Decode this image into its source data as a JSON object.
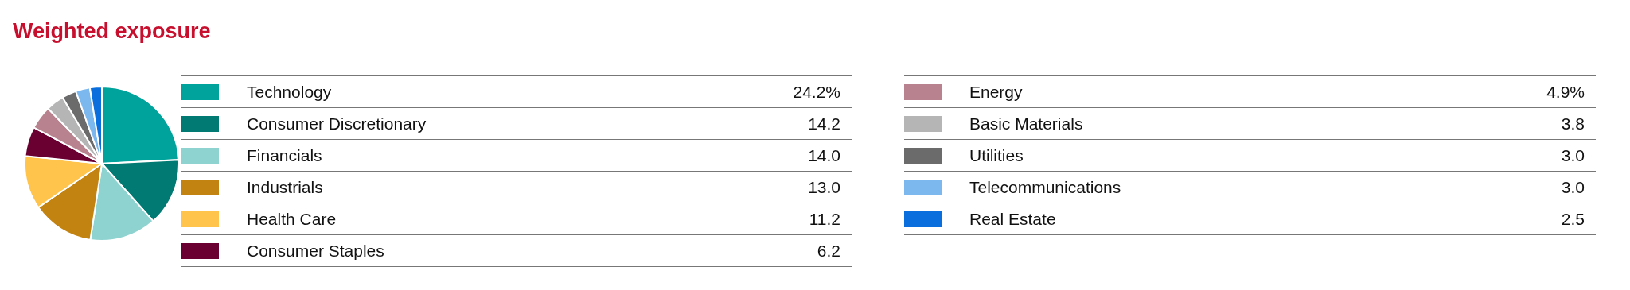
{
  "chart_data": {
    "type": "pie",
    "title": "Weighted exposure",
    "categories": [
      "Technology",
      "Consumer Discretionary",
      "Financials",
      "Industrials",
      "Health Care",
      "Consumer Staples",
      "Energy",
      "Basic Materials",
      "Utilities",
      "Telecommunications",
      "Real Estate"
    ],
    "values": [
      24.2,
      14.2,
      14.0,
      13.0,
      11.2,
      6.2,
      4.9,
      3.8,
      3.0,
      3.0,
      2.5
    ],
    "value_labels": [
      "24.2%",
      "14.2",
      "14.0",
      "13.0",
      "11.2",
      "6.2",
      "4.9%",
      "3.8",
      "3.0",
      "3.0",
      "2.5"
    ],
    "colors": [
      "#00a39c",
      "#007a72",
      "#8ed3cf",
      "#c38311",
      "#ffc44b",
      "#6a0032",
      "#b8838f",
      "#b5b5b5",
      "#6b6b6b",
      "#7cb8ee",
      "#0a6fdc"
    ],
    "legend": "right"
  }
}
